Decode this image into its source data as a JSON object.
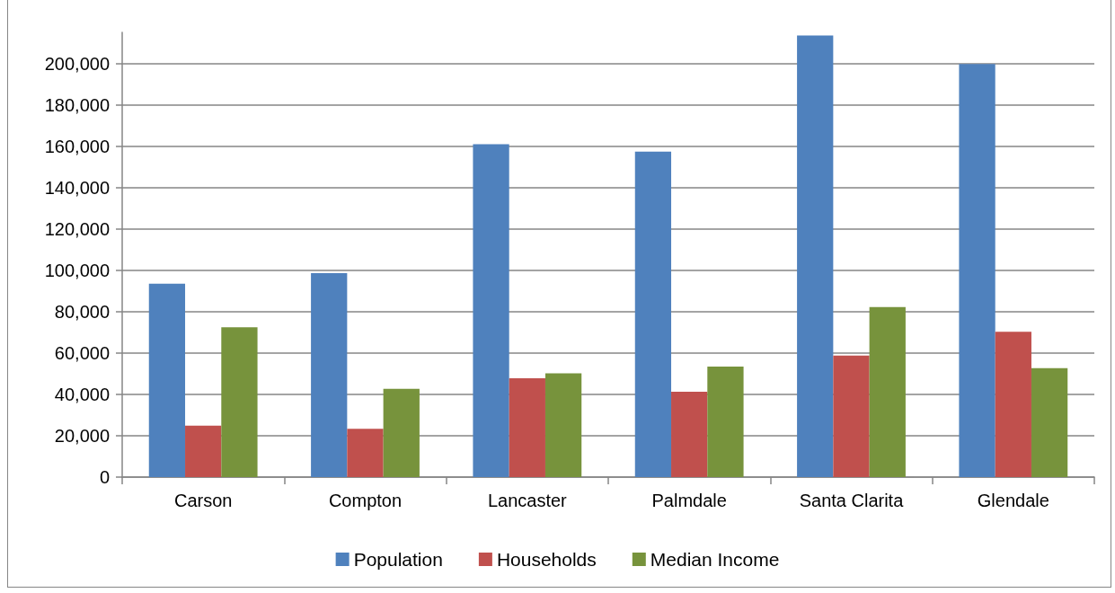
{
  "chart_data": {
    "type": "bar",
    "categories": [
      "Carson",
      "Compton",
      "Lancaster",
      "Palmdale",
      "Santa Clarita",
      "Glendale"
    ],
    "series": [
      {
        "name": "Population",
        "color": "#4f81bd",
        "values": [
          93500,
          98600,
          160900,
          157300,
          213500,
          199700
        ]
      },
      {
        "name": "Households",
        "color": "#c0504d",
        "values": [
          24900,
          23300,
          47800,
          41300,
          58700,
          70300
        ]
      },
      {
        "name": "Median Income",
        "color": "#77933c",
        "values": [
          72400,
          42700,
          50200,
          53400,
          82200,
          52700
        ]
      }
    ],
    "ylim": [
      0,
      215000
    ],
    "yticks": [
      0,
      {
        "value": 20000,
        "label": "20,000"
      },
      {
        "value": 40000,
        "label": "40,000"
      },
      {
        "value": 60000,
        "label": "60,000"
      },
      {
        "value": 80000,
        "label": "80,000"
      },
      {
        "value": 100000,
        "label": "100,000"
      },
      {
        "value": 120000,
        "label": "120,000"
      },
      {
        "value": 140000,
        "label": "140,000"
      },
      {
        "value": 160000,
        "label": "160,000"
      },
      {
        "value": 180000,
        "label": "180,000"
      },
      {
        "value": 200000,
        "label": "200,000"
      }
    ],
    "grid": "y",
    "legend": "bottom"
  }
}
